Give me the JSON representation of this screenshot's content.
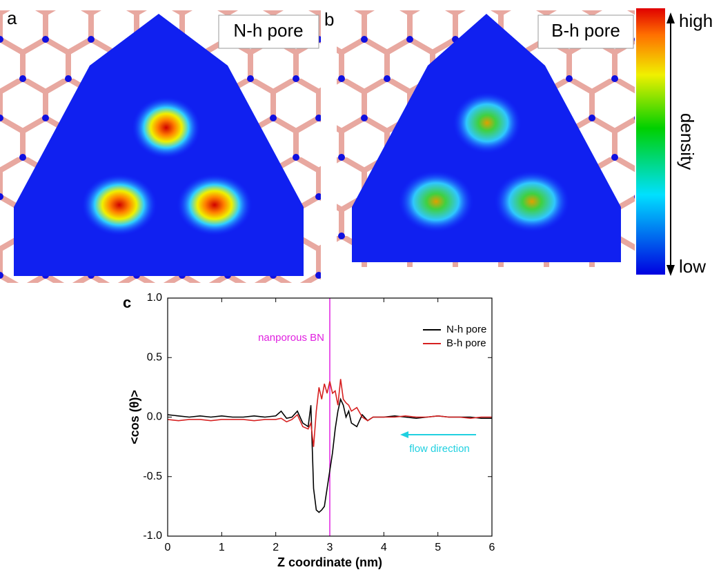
{
  "panels": [
    {
      "label": "a",
      "tag": "N-h pore"
    },
    {
      "label": "b",
      "tag": "B-h pore"
    }
  ],
  "colorbar": {
    "high": "high",
    "low": "low",
    "title": "density"
  },
  "chart_data": {
    "type": "line",
    "panel_label": "c",
    "xlabel": "Z coordinate (nm)",
    "ylabel": "<cos (θ)>",
    "x": [
      0,
      0.2,
      0.4,
      0.6,
      0.8,
      1.0,
      1.2,
      1.4,
      1.6,
      1.8,
      2.0,
      2.1,
      2.2,
      2.3,
      2.4,
      2.5,
      2.6,
      2.65,
      2.7,
      2.75,
      2.8,
      2.85,
      2.9,
      2.95,
      3.0,
      3.05,
      3.1,
      3.15,
      3.2,
      3.25,
      3.3,
      3.35,
      3.4,
      3.5,
      3.6,
      3.7,
      3.8,
      4.0,
      4.2,
      4.4,
      4.6,
      4.8,
      5.0,
      5.2,
      5.4,
      5.6,
      5.8,
      6.0
    ],
    "series": [
      {
        "name": "N-h pore",
        "color": "#000000",
        "values": [
          0.02,
          0.01,
          0.0,
          0.01,
          0.0,
          0.01,
          0.0,
          0.0,
          0.01,
          0.0,
          0.01,
          0.05,
          -0.01,
          0.0,
          0.05,
          -0.05,
          -0.08,
          0.1,
          -0.6,
          -0.78,
          -0.8,
          -0.78,
          -0.75,
          -0.6,
          -0.45,
          -0.3,
          -0.1,
          0.05,
          0.15,
          0.1,
          0.0,
          0.05,
          -0.05,
          -0.08,
          0.02,
          -0.03,
          0.0,
          0.0,
          0.01,
          0.0,
          -0.01,
          0.0,
          0.01,
          0.0,
          0.0,
          0.0,
          -0.01,
          -0.01
        ]
      },
      {
        "name": "B-h pore",
        "color": "#d62020",
        "values": [
          -0.02,
          -0.03,
          -0.02,
          -0.02,
          -0.03,
          -0.02,
          -0.02,
          -0.02,
          -0.03,
          -0.02,
          -0.02,
          -0.01,
          -0.04,
          -0.02,
          0.02,
          -0.08,
          -0.1,
          -0.05,
          -0.25,
          0.05,
          0.25,
          0.15,
          0.28,
          0.2,
          0.3,
          0.2,
          0.22,
          0.1,
          0.32,
          0.15,
          0.12,
          0.1,
          0.05,
          0.08,
          0.0,
          -0.03,
          0.0,
          0.0,
          0.0,
          0.01,
          0.0,
          0.0,
          0.01,
          0.0,
          0.0,
          -0.01,
          0.0,
          0.0
        ]
      }
    ],
    "xlim": [
      0,
      6
    ],
    "ylim": [
      -1,
      1
    ],
    "xticks": [
      0,
      1,
      2,
      3,
      4,
      5,
      6
    ],
    "yticks": [
      {
        "value": -1,
        "label": "-1.0"
      },
      {
        "value": -0.5,
        "label": "-0.5"
      },
      {
        "value": 0,
        "label": "0.0"
      },
      {
        "value": 0.5,
        "label": "0.5"
      },
      {
        "value": 1,
        "label": "1.0"
      }
    ],
    "legend": "upper right",
    "vline": {
      "x": 3,
      "label": "nanporous BN",
      "color": "#e020e0"
    },
    "annotation": {
      "text": "flow direction",
      "color": "#20d0e0"
    }
  }
}
